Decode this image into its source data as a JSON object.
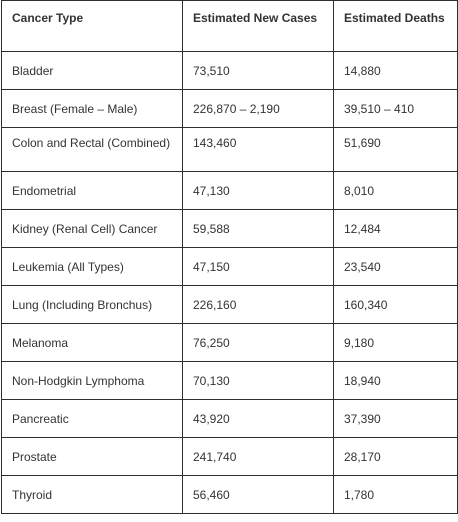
{
  "table": {
    "headers": [
      "Cancer Type",
      "Estimated New Cases",
      "Estimated Deaths"
    ],
    "rows": [
      [
        "Bladder",
        "73,510",
        "14,880"
      ],
      [
        "Breast (Female – Male)",
        "226,870 – 2,190",
        "39,510 – 410"
      ],
      [
        "Colon and Rectal (Combined)",
        "143,460",
        "51,690"
      ],
      [
        "Endometrial",
        "47,130",
        "8,010"
      ],
      [
        "Kidney (Renal Cell) Cancer",
        "59,588",
        "12,484"
      ],
      [
        "Leukemia (All Types)",
        "47,150",
        "23,540"
      ],
      [
        "Lung (Including Bronchus)",
        "226,160",
        "160,340"
      ],
      [
        "Melanoma",
        "76,250",
        "9,180"
      ],
      [
        "Non-Hodgkin Lymphoma",
        "70,130",
        "18,940"
      ],
      [
        "Pancreatic",
        "43,920",
        "37,390"
      ],
      [
        "Prostate",
        "241,740",
        "28,170"
      ],
      [
        "Thyroid",
        "56,460",
        "1,780"
      ]
    ]
  }
}
